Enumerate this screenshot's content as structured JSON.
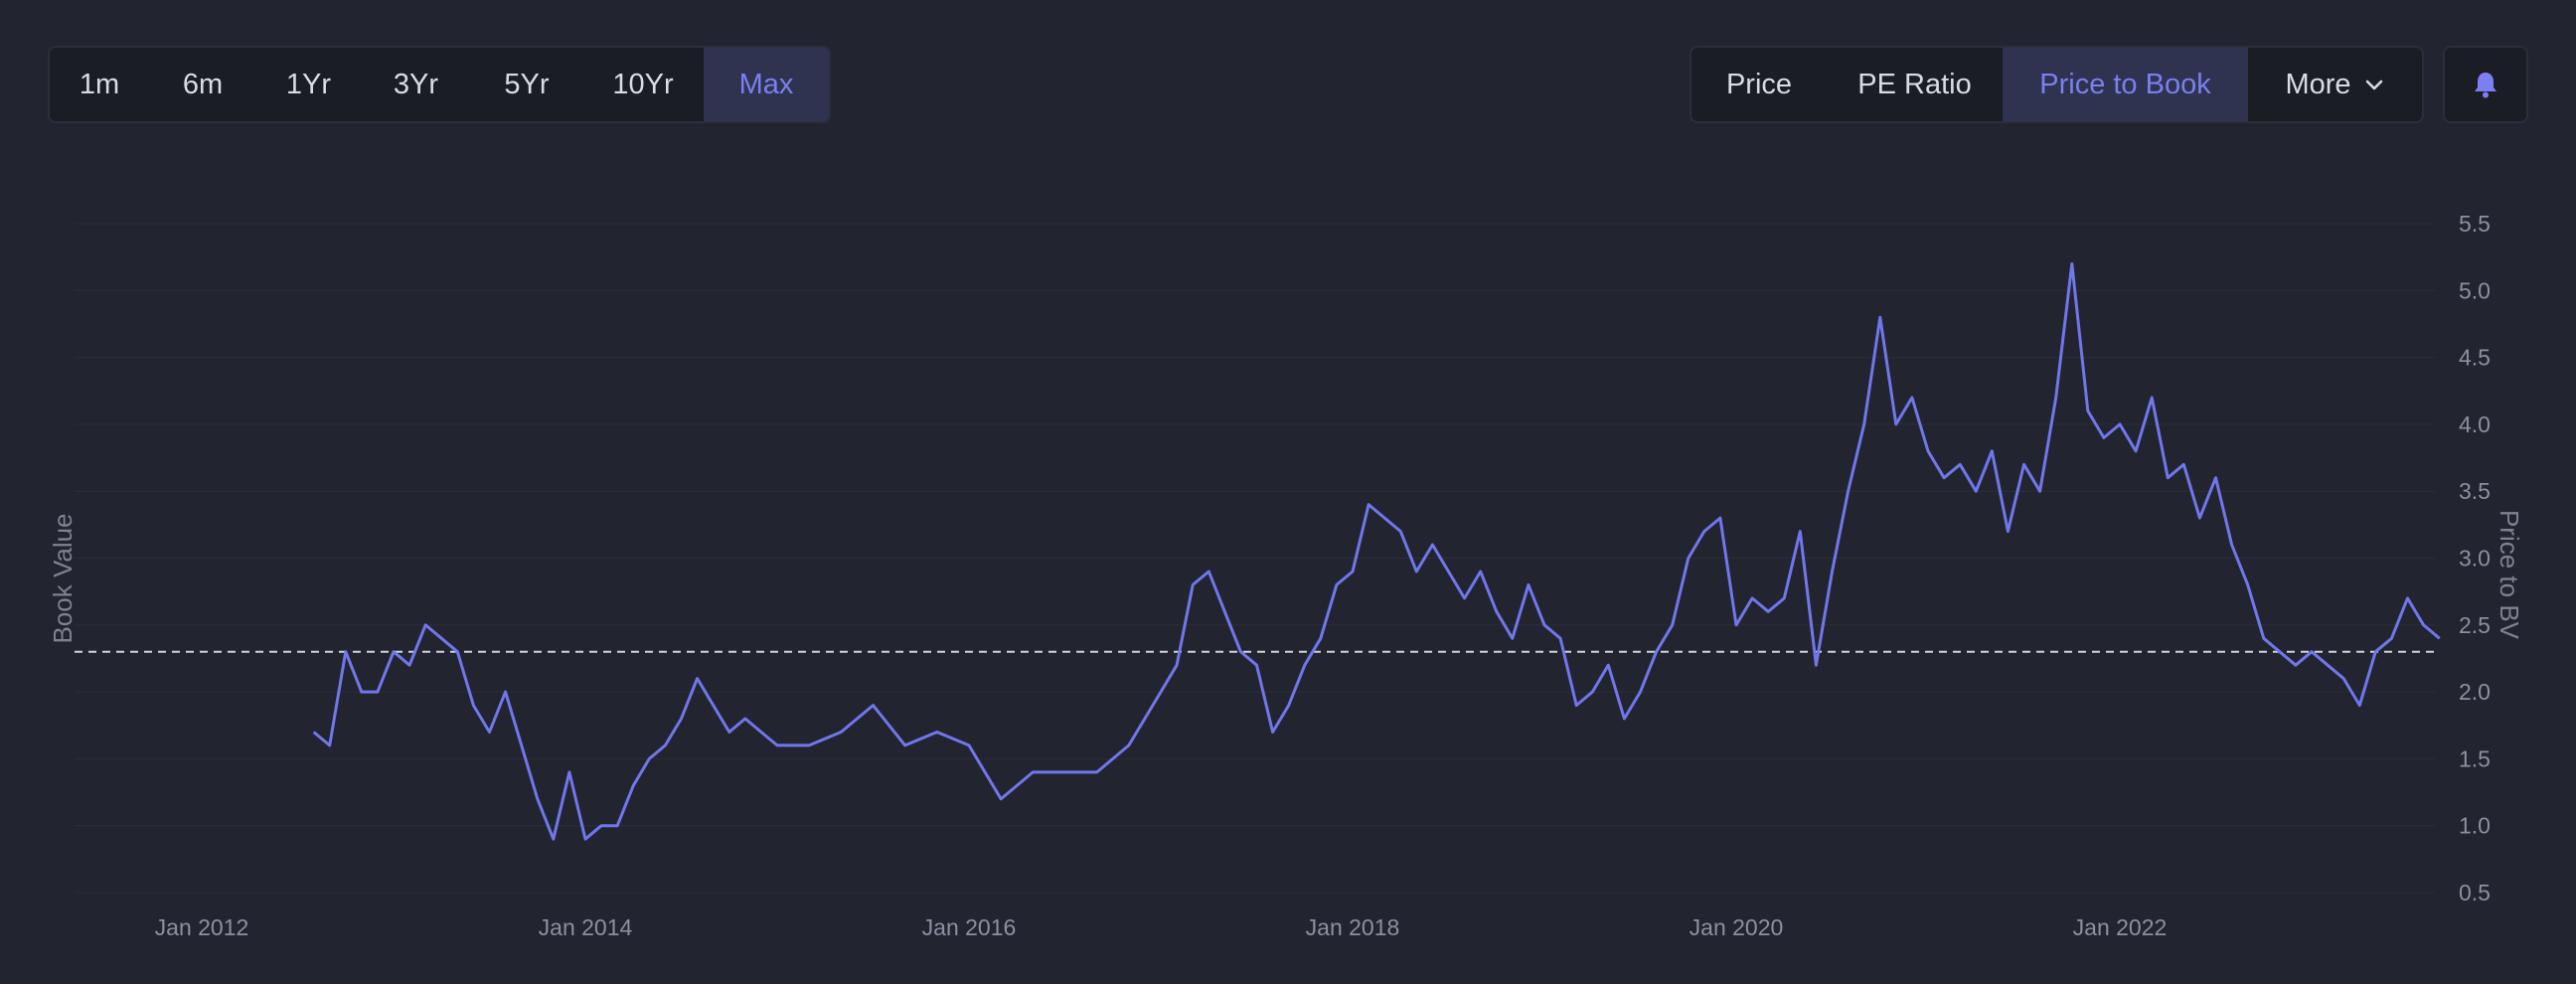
{
  "range_tabs": [
    {
      "label": "1m",
      "active": false
    },
    {
      "label": "6m",
      "active": false
    },
    {
      "label": "1Yr",
      "active": false
    },
    {
      "label": "3Yr",
      "active": false
    },
    {
      "label": "5Yr",
      "active": false
    },
    {
      "label": "10Yr",
      "active": false
    },
    {
      "label": "Max",
      "active": true
    }
  ],
  "metric_tabs": [
    {
      "label": "Price",
      "active": false
    },
    {
      "label": "PE Ratio",
      "active": false
    },
    {
      "label": "Price to Book",
      "active": true
    }
  ],
  "more_button": {
    "label": "More",
    "icon": "chevron-down-icon"
  },
  "alert_button": {
    "icon": "bell-icon"
  },
  "colors": {
    "background": "#22242f",
    "accent": "#7b7ff0",
    "line": "#7077ec",
    "reference_line": "#d0d2dc",
    "grid": "#2b2e3a"
  },
  "chart_data": {
    "type": "line",
    "title": "",
    "xlabel": "",
    "ylabel_left": "Book Value",
    "ylabel_right": "Price to BV",
    "x_ticks": [
      "Jan 2012",
      "Jan 2014",
      "Jan 2016",
      "Jan 2018",
      "Jan 2020",
      "Jan 2022"
    ],
    "y_ticks": [
      "0.5",
      "1.0",
      "1.5",
      "2.0",
      "2.5",
      "3.0",
      "3.5",
      "4.0",
      "4.5",
      "5.0",
      "5.5"
    ],
    "xlim": [
      "2011-07-01",
      "2023-08-01"
    ],
    "ylim": [
      0.5,
      5.5
    ],
    "grid": true,
    "reference_line": {
      "value": 2.3,
      "style": "dashed"
    },
    "series": [
      {
        "values": [
          [
            "2012-08",
            1.7
          ],
          [
            "2012-09",
            1.6
          ],
          [
            "2012-10",
            2.3
          ],
          [
            "2012-11",
            2.0
          ],
          [
            "2012-12",
            2.0
          ],
          [
            "2013-01",
            2.3
          ],
          [
            "2013-02",
            2.2
          ],
          [
            "2013-03",
            2.5
          ],
          [
            "2013-04",
            2.4
          ],
          [
            "2013-05",
            2.3
          ],
          [
            "2013-06",
            1.9
          ],
          [
            "2013-07",
            1.7
          ],
          [
            "2013-08",
            2.0
          ],
          [
            "2013-09",
            1.6
          ],
          [
            "2013-10",
            1.2
          ],
          [
            "2013-11",
            0.9
          ],
          [
            "2013-12",
            1.4
          ],
          [
            "2014-01",
            0.9
          ],
          [
            "2014-02",
            1.0
          ],
          [
            "2014-03",
            1.0
          ],
          [
            "2014-04",
            1.3
          ],
          [
            "2014-05",
            1.5
          ],
          [
            "2014-06",
            1.6
          ],
          [
            "2014-07",
            1.8
          ],
          [
            "2014-08",
            2.1
          ],
          [
            "2014-09",
            1.9
          ],
          [
            "2014-10",
            1.7
          ],
          [
            "2014-11",
            1.8
          ],
          [
            "2014-12",
            1.7
          ],
          [
            "2015-01",
            1.6
          ],
          [
            "2015-03",
            1.6
          ],
          [
            "2015-05",
            1.7
          ],
          [
            "2015-07",
            1.9
          ],
          [
            "2015-09",
            1.6
          ],
          [
            "2015-11",
            1.7
          ],
          [
            "2016-01",
            1.6
          ],
          [
            "2016-02",
            1.4
          ],
          [
            "2016-03",
            1.2
          ],
          [
            "2016-05",
            1.4
          ],
          [
            "2016-07",
            1.4
          ],
          [
            "2016-09",
            1.4
          ],
          [
            "2016-11",
            1.6
          ],
          [
            "2017-01",
            2.0
          ],
          [
            "2017-02",
            2.2
          ],
          [
            "2017-03",
            2.8
          ],
          [
            "2017-04",
            2.9
          ],
          [
            "2017-05",
            2.6
          ],
          [
            "2017-06",
            2.3
          ],
          [
            "2017-07",
            2.2
          ],
          [
            "2017-08",
            1.7
          ],
          [
            "2017-09",
            1.9
          ],
          [
            "2017-10",
            2.2
          ],
          [
            "2017-11",
            2.4
          ],
          [
            "2017-12",
            2.8
          ],
          [
            "2018-01",
            2.9
          ],
          [
            "2018-02",
            3.4
          ],
          [
            "2018-03",
            3.3
          ],
          [
            "2018-04",
            3.2
          ],
          [
            "2018-05",
            2.9
          ],
          [
            "2018-06",
            3.1
          ],
          [
            "2018-07",
            2.9
          ],
          [
            "2018-08",
            2.7
          ],
          [
            "2018-09",
            2.9
          ],
          [
            "2018-10",
            2.6
          ],
          [
            "2018-11",
            2.4
          ],
          [
            "2018-12",
            2.8
          ],
          [
            "2019-01",
            2.5
          ],
          [
            "2019-02",
            2.4
          ],
          [
            "2019-03",
            1.9
          ],
          [
            "2019-04",
            2.0
          ],
          [
            "2019-05",
            2.2
          ],
          [
            "2019-06",
            1.8
          ],
          [
            "2019-07",
            2.0
          ],
          [
            "2019-08",
            2.3
          ],
          [
            "2019-09",
            2.5
          ],
          [
            "2019-10",
            3.0
          ],
          [
            "2019-11",
            3.2
          ],
          [
            "2019-12",
            3.3
          ],
          [
            "2020-01",
            2.5
          ],
          [
            "2020-02",
            2.7
          ],
          [
            "2020-03",
            2.6
          ],
          [
            "2020-04",
            2.7
          ],
          [
            "2020-05",
            3.2
          ],
          [
            "2020-06",
            2.2
          ],
          [
            "2020-07",
            2.9
          ],
          [
            "2020-08",
            3.5
          ],
          [
            "2020-09",
            4.0
          ],
          [
            "2020-10",
            4.8
          ],
          [
            "2020-11",
            4.0
          ],
          [
            "2020-12",
            4.2
          ],
          [
            "2021-01",
            3.8
          ],
          [
            "2021-02",
            3.6
          ],
          [
            "2021-03",
            3.7
          ],
          [
            "2021-04",
            3.5
          ],
          [
            "2021-05",
            3.8
          ],
          [
            "2021-06",
            3.2
          ],
          [
            "2021-07",
            3.7
          ],
          [
            "2021-08",
            3.5
          ],
          [
            "2021-09",
            4.2
          ],
          [
            "2021-10",
            5.2
          ],
          [
            "2021-11",
            4.1
          ],
          [
            "2021-12",
            3.9
          ],
          [
            "2022-01",
            4.0
          ],
          [
            "2022-02",
            3.8
          ],
          [
            "2022-03",
            4.2
          ],
          [
            "2022-04",
            3.6
          ],
          [
            "2022-05",
            3.7
          ],
          [
            "2022-06",
            3.3
          ],
          [
            "2022-07",
            3.6
          ],
          [
            "2022-08",
            3.1
          ],
          [
            "2022-09",
            2.8
          ],
          [
            "2022-10",
            2.4
          ],
          [
            "2022-11",
            2.3
          ],
          [
            "2022-12",
            2.2
          ],
          [
            "2023-01",
            2.3
          ],
          [
            "2023-02",
            2.2
          ],
          [
            "2023-03",
            2.1
          ],
          [
            "2023-04",
            1.9
          ],
          [
            "2023-05",
            2.3
          ],
          [
            "2023-06",
            2.4
          ],
          [
            "2023-07",
            2.7
          ],
          [
            "2023-08",
            2.5
          ],
          [
            "2023-09",
            2.4
          ]
        ]
      }
    ]
  }
}
